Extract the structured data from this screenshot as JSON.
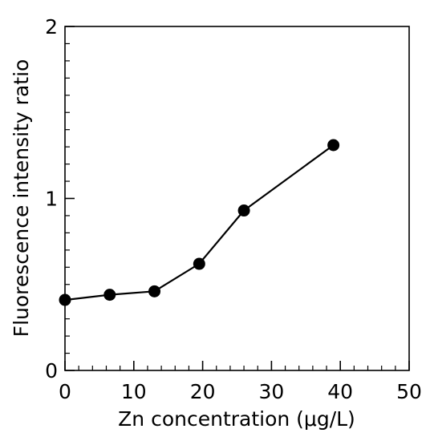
{
  "chart_data": {
    "type": "line",
    "title": "",
    "xlabel": "Zn concentration (μg/L)",
    "ylabel": "Fluorescence intensity ratio",
    "xlim": [
      0,
      50
    ],
    "ylim": [
      0,
      2
    ],
    "x_ticks": [
      0,
      10,
      20,
      30,
      40,
      50
    ],
    "x_tick_labels": [
      "0",
      "10",
      "20",
      "30",
      "40",
      "50"
    ],
    "y_ticks": [
      0,
      1,
      2
    ],
    "y_tick_labels": [
      "0",
      "1",
      "2"
    ],
    "x_minor_step": 2,
    "y_minor_step": 0.1,
    "grid": false,
    "legend": "none",
    "series": [
      {
        "x": [
          0,
          6.5,
          13,
          19.5,
          26,
          39
        ],
        "y": [
          0.41,
          0.44,
          0.46,
          0.62,
          0.93,
          1.31
        ]
      }
    ],
    "colors": {
      "line": "#000000",
      "marker": "#000000",
      "axes": "#000000"
    }
  }
}
